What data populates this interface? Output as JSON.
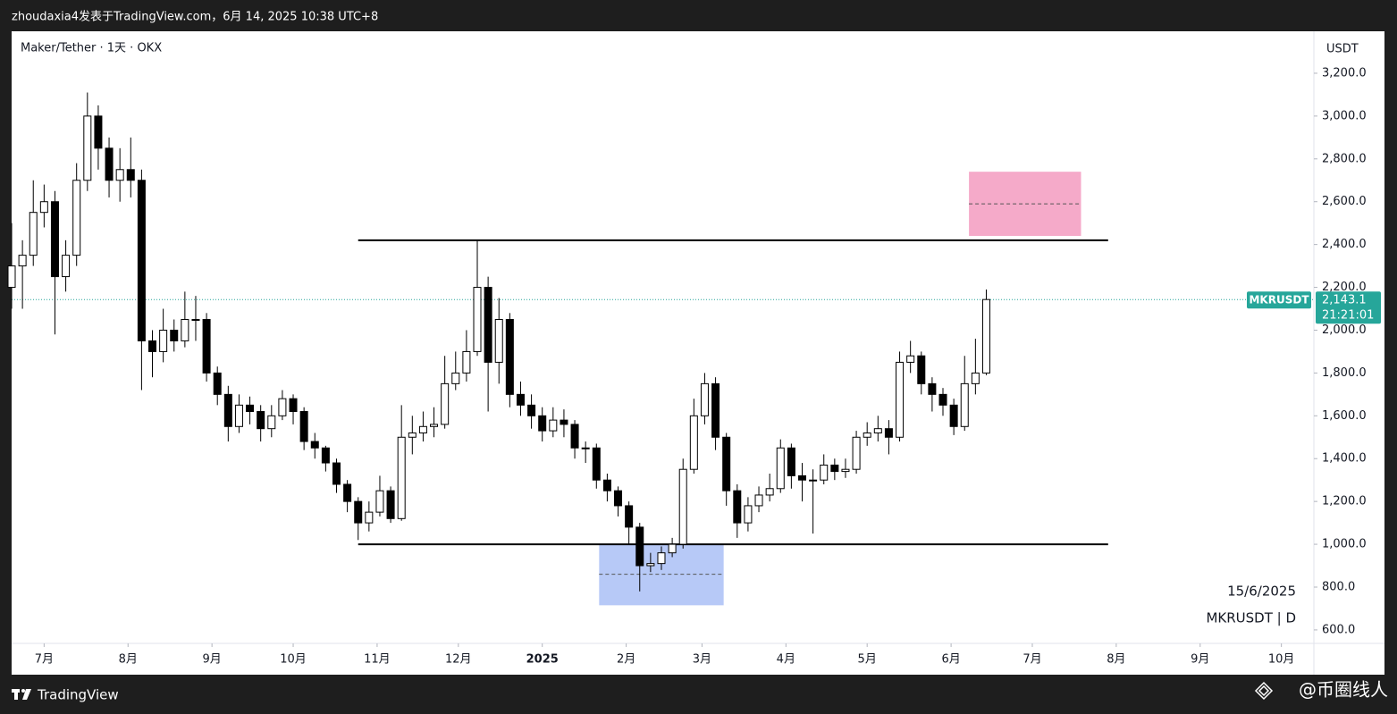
{
  "chart_data": {
    "type": "candlestick",
    "header": "zhoudaxia4发表于TradingView.com，6月 14, 2025 10:38 UTC+8",
    "title": "Maker/Tether · 1天 · OKX",
    "currency": "USDT",
    "symbol": "MKRUSDT",
    "countdown": "21:21:01",
    "date_note": "15/6/2025",
    "symbol_note": "MKRUSDT | D",
    "brand": "TradingView",
    "watermark": "@币圈线人",
    "up_color": "#ffffff",
    "down_color": "#000000",
    "x": [
      0,
      4,
      8,
      12,
      16,
      20,
      24,
      28,
      32,
      36,
      40,
      44,
      48,
      52,
      56,
      60,
      64,
      68,
      72,
      76,
      80,
      84,
      88,
      92,
      96,
      100,
      104,
      108,
      112,
      116,
      120,
      124,
      128,
      132,
      136,
      140,
      144,
      148,
      152,
      156,
      160,
      164,
      168,
      172,
      176,
      180,
      184,
      188,
      192,
      196,
      200,
      204,
      208,
      212,
      216,
      220,
      224,
      228,
      232,
      236,
      240,
      244,
      248,
      252,
      256,
      260,
      264,
      268,
      272,
      276,
      280,
      284,
      288,
      292,
      296,
      300,
      304,
      308,
      312,
      316,
      320,
      324,
      328,
      332,
      336,
      340,
      344,
      348,
      352,
      356,
      360
    ],
    "open": [
      2200,
      2300,
      2350,
      2550,
      2600,
      2250,
      2350,
      2700,
      3000,
      2850,
      2700,
      2750,
      2700,
      1950,
      1900,
      2000,
      1950,
      2050,
      2050,
      1800,
      1700,
      1550,
      1650,
      1620,
      1540,
      1600,
      1680,
      1620,
      1480,
      1450,
      1380,
      1280,
      1200,
      1100,
      1150,
      1250,
      1120,
      1500,
      1520,
      1550,
      1560,
      1750,
      1800,
      1900,
      2200,
      1850,
      2050,
      1700,
      1650,
      1600,
      1530,
      1580,
      1560,
      1450,
      1450,
      1300,
      1250,
      1180,
      1080,
      900,
      910,
      960,
      1000,
      1350,
      1600,
      1750,
      1500,
      1250,
      1100,
      1180,
      1230,
      1260,
      1450,
      1320,
      1300,
      1300,
      1370,
      1340,
      1350,
      1500,
      1520,
      1540,
      1500,
      1850,
      1880,
      1750,
      1700,
      1650,
      1550,
      1750,
      1800
    ],
    "high": [
      2500,
      2420,
      2700,
      2680,
      2650,
      2420,
      2780,
      3110,
      3050,
      2900,
      2850,
      2900,
      2750,
      2000,
      2100,
      2050,
      2180,
      2160,
      2080,
      1830,
      1740,
      1700,
      1690,
      1650,
      1650,
      1720,
      1700,
      1640,
      1520,
      1460,
      1400,
      1300,
      1220,
      1200,
      1320,
      1270,
      1650,
      1600,
      1620,
      1640,
      1880,
      1900,
      2000,
      2420,
      2250,
      2150,
      2080,
      1760,
      1700,
      1640,
      1640,
      1630,
      1580,
      1480,
      1470,
      1330,
      1270,
      1200,
      1100,
      960,
      990,
      1030,
      1400,
      1680,
      1800,
      1780,
      1520,
      1280,
      1220,
      1270,
      1330,
      1490,
      1470,
      1380,
      1350,
      1420,
      1400,
      1400,
      1530,
      1570,
      1600,
      1580,
      1900,
      1950,
      1900,
      1780,
      1730,
      1680,
      1880,
      1960,
      2190
    ],
    "low": [
      2100,
      2100,
      2300,
      2480,
      1980,
      2180,
      2300,
      2650,
      2750,
      2620,
      2600,
      2620,
      1720,
      1780,
      1850,
      1900,
      1920,
      1950,
      1760,
      1650,
      1480,
      1520,
      1560,
      1480,
      1500,
      1580,
      1560,
      1440,
      1400,
      1340,
      1240,
      1150,
      1020,
      1060,
      1130,
      1100,
      1110,
      1420,
      1480,
      1500,
      1540,
      1720,
      1760,
      1880,
      1620,
      1750,
      1640,
      1600,
      1540,
      1480,
      1500,
      1500,
      1400,
      1380,
      1260,
      1200,
      1130,
      1000,
      780,
      870,
      880,
      940,
      980,
      1330,
      1560,
      1440,
      1180,
      1030,
      1060,
      1150,
      1200,
      1240,
      1260,
      1200,
      1050,
      1280,
      1300,
      1310,
      1330,
      1460,
      1480,
      1420,
      1480,
      1800,
      1700,
      1620,
      1600,
      1510,
      1530,
      1700,
      1790
    ],
    "close": [
      2300,
      2350,
      2550,
      2600,
      2250,
      2350,
      2700,
      3000,
      2850,
      2700,
      2750,
      2700,
      1950,
      1900,
      2000,
      1950,
      2050,
      2050,
      1800,
      1700,
      1550,
      1650,
      1620,
      1540,
      1600,
      1680,
      1620,
      1480,
      1450,
      1380,
      1280,
      1200,
      1100,
      1150,
      1250,
      1120,
      1500,
      1520,
      1550,
      1560,
      1750,
      1800,
      1900,
      2200,
      1850,
      2050,
      1700,
      1650,
      1600,
      1530,
      1580,
      1560,
      1450,
      1450,
      1300,
      1250,
      1180,
      1080,
      900,
      910,
      960,
      1000,
      1350,
      1600,
      1750,
      1500,
      1250,
      1100,
      1180,
      1230,
      1260,
      1450,
      1320,
      1300,
      1300,
      1370,
      1340,
      1350,
      1500,
      1520,
      1540,
      1500,
      1850,
      1880,
      1750,
      1700,
      1650,
      1550,
      1750,
      1800,
      2143.1
    ],
    "xlim": [
      0,
      481
    ],
    "xticks": [
      {
        "value": 12,
        "label": "7月"
      },
      {
        "value": 43,
        "label": "8月"
      },
      {
        "value": 74,
        "label": "9月"
      },
      {
        "value": 104,
        "label": "10月"
      },
      {
        "value": 135,
        "label": "11月"
      },
      {
        "value": 165,
        "label": "12月"
      },
      {
        "value": 196,
        "label": "2025"
      },
      {
        "value": 227,
        "label": "2月"
      },
      {
        "value": 255,
        "label": "3月"
      },
      {
        "value": 286,
        "label": "4月"
      },
      {
        "value": 316,
        "label": "5月"
      },
      {
        "value": 347,
        "label": "6月"
      },
      {
        "value": 377,
        "label": "7月"
      },
      {
        "value": 408,
        "label": "8月"
      },
      {
        "value": 439,
        "label": "9月"
      },
      {
        "value": 469,
        "label": "10月"
      }
    ],
    "ylim": [
      537,
      3396
    ],
    "yticks": [
      {
        "value": 600,
        "label": "600.0"
      },
      {
        "value": 800,
        "label": "800.0"
      },
      {
        "value": 1000,
        "label": "1,000.0"
      },
      {
        "value": 1200,
        "label": "1,200.0"
      },
      {
        "value": 1400,
        "label": "1,400.0"
      },
      {
        "value": 1600,
        "label": "1,600.0"
      },
      {
        "value": 1800,
        "label": "1,800.0"
      },
      {
        "value": 2000,
        "label": "2,000.0"
      },
      {
        "value": 2200,
        "label": "2,200.0"
      },
      {
        "value": 2400,
        "label": "2,400.0"
      },
      {
        "value": 2600,
        "label": "2,600.0"
      },
      {
        "value": 2800,
        "label": "2,800.0"
      },
      {
        "value": 3000,
        "label": "3,000.0"
      },
      {
        "value": 3200,
        "label": "3,200.0"
      }
    ],
    "levels": [
      {
        "value": 2420,
        "x": [
          128,
          405
        ]
      },
      {
        "value": 1000,
        "x": [
          128,
          405
        ]
      }
    ],
    "zones": [
      {
        "top": 2740,
        "bottom": 2440,
        "mid": 2590,
        "x": [
          353.6,
          395
        ],
        "color": "#f5aac9"
      },
      {
        "top": 1000,
        "bottom": 715,
        "mid": 860,
        "x": [
          217,
          263
        ],
        "color": "#b7c9f7"
      }
    ],
    "last_price": {
      "value": 2143.1,
      "label": "2,143.1"
    },
    "last_color": "#26a69a"
  }
}
